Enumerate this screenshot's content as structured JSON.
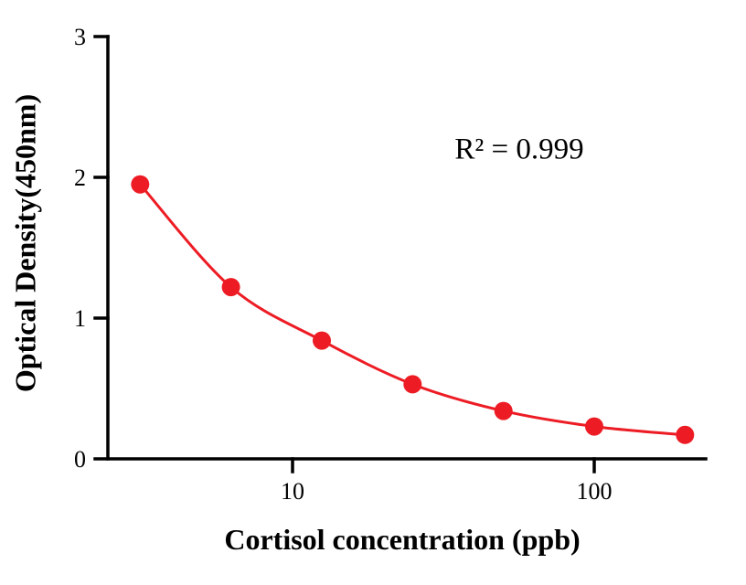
{
  "chart_data": {
    "type": "scatter",
    "x": [
      3.125,
      6.25,
      12.5,
      25,
      50,
      100,
      200
    ],
    "y": [
      1.95,
      1.22,
      0.84,
      0.53,
      0.34,
      0.23,
      0.17
    ],
    "xlabel": "Cortisol concentration (ppb)",
    "ylabel": "Optical Density(450nm)",
    "annotation": "R² = 0.999",
    "xscale": "log",
    "ylim": [
      0,
      3
    ],
    "yticks": [
      0,
      1,
      2,
      3
    ],
    "ytick_labels": [
      "0",
      "1",
      "2",
      "3"
    ],
    "xticks": [
      10,
      100
    ],
    "xtick_labels": [
      "10",
      "100"
    ],
    "line_style": "smooth-fit-curve",
    "marker": "circle",
    "marker_color": "#ed1c24",
    "line_color": "#ed1c24",
    "axis_color": "#000000",
    "background": "#ffffff",
    "legend": "none",
    "grid": "off"
  }
}
